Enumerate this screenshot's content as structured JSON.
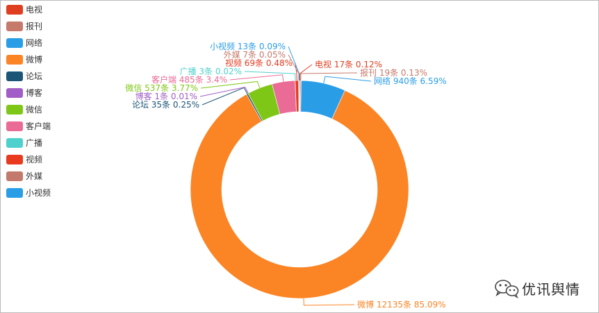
{
  "chart_data": {
    "type": "pie",
    "variant": "donut",
    "unit": "条",
    "legend_position": "left",
    "series": [
      {
        "name": "电视",
        "value": 17,
        "percent": "0.12%",
        "color": "#e03e20"
      },
      {
        "name": "报刊",
        "value": 19,
        "percent": "0.13%",
        "color": "#c57a6a"
      },
      {
        "name": "网络",
        "value": 940,
        "percent": "6.59%",
        "color": "#2a9de7"
      },
      {
        "name": "微博",
        "value": 12135,
        "percent": "85.09%",
        "color": "#fb8424"
      },
      {
        "name": "论坛",
        "value": 35,
        "percent": "0.25%",
        "color": "#1d5577"
      },
      {
        "name": "博客",
        "value": 1,
        "percent": "0.01%",
        "color": "#a15ec7"
      },
      {
        "name": "微信",
        "value": 537,
        "percent": "3.77%",
        "color": "#7fc716"
      },
      {
        "name": "客户端",
        "value": 485,
        "percent": "3.4%",
        "color": "#ea6b95"
      },
      {
        "name": "广播",
        "value": 3,
        "percent": "0.02%",
        "color": "#4ed1cd"
      },
      {
        "name": "视频",
        "value": 69,
        "percent": "0.48%",
        "color": "#e73a1f"
      },
      {
        "name": "外媒",
        "value": 7,
        "percent": "0.05%",
        "color": "#c37a6c"
      },
      {
        "name": "小视频",
        "value": 13,
        "percent": "0.09%",
        "color": "#2a9de7"
      }
    ]
  },
  "watermark": {
    "text": "优讯舆情",
    "icon": "wechat-icon"
  }
}
